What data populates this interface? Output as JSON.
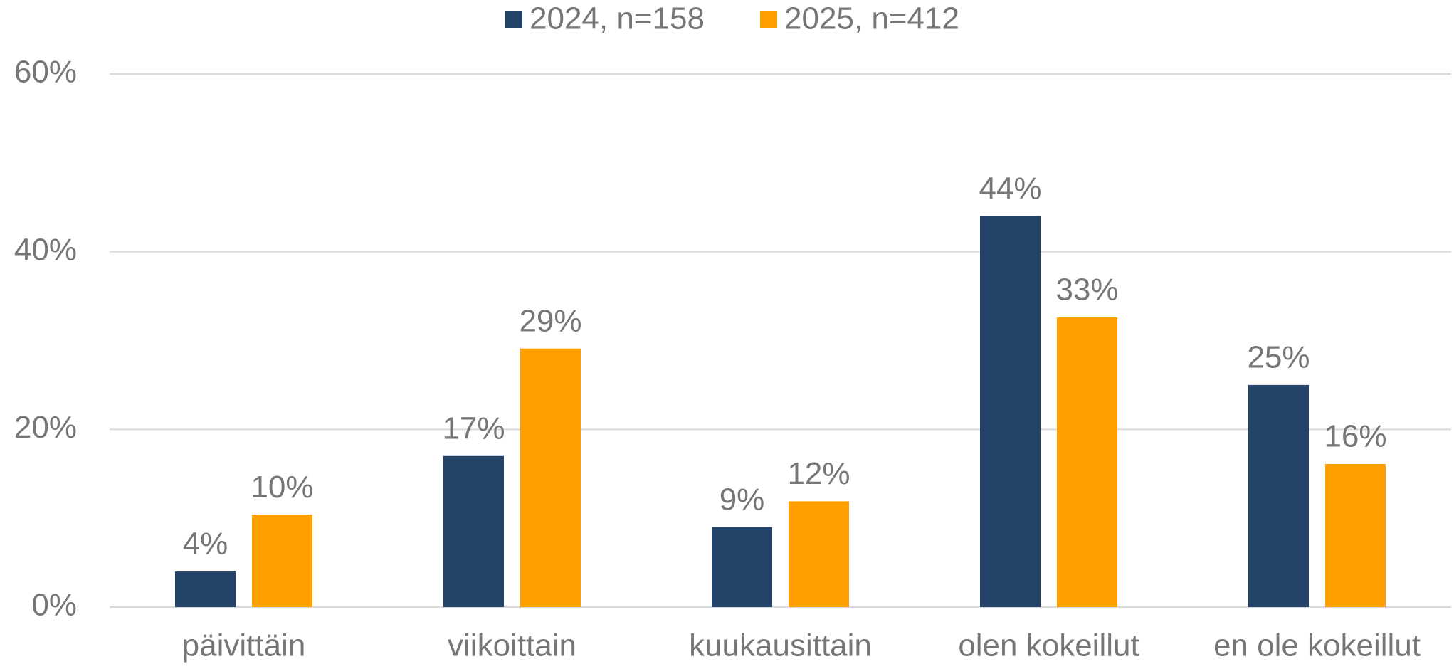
{
  "chart_data": {
    "type": "bar",
    "categories": [
      "päivittäin",
      "viikoittain",
      "kuukausittain",
      "olen kokeillut",
      "en ole kokeillut"
    ],
    "series": [
      {
        "name": "2024, n=158",
        "color": "#244369",
        "values": [
          4,
          17,
          9,
          44,
          25
        ],
        "value_labels": [
          "4%",
          "17%",
          "9%",
          "44%",
          "25%"
        ]
      },
      {
        "name": "2025, n=412",
        "color": "#ffa000",
        "values": [
          10.4,
          29.1,
          11.9,
          32.6,
          16.1
        ],
        "value_labels": [
          "10%",
          "29%",
          "12%",
          "33%",
          "16%"
        ]
      }
    ],
    "ylim": [
      0,
      60
    ],
    "yticks": [
      {
        "value": 0,
        "label": "0%"
      },
      {
        "value": 20,
        "label": "20%"
      },
      {
        "value": 40,
        "label": "40%"
      },
      {
        "value": 60,
        "label": "60%"
      }
    ],
    "grid": true,
    "legend": "top"
  }
}
